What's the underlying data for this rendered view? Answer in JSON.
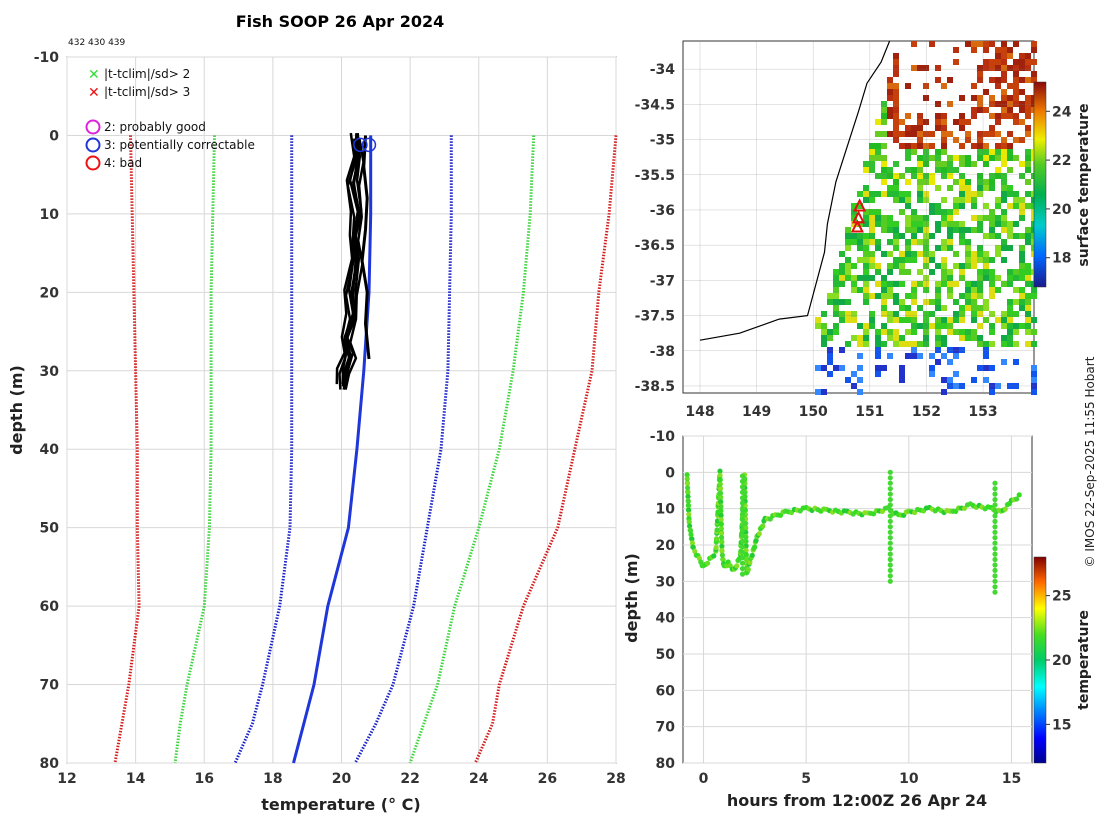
{
  "figure": {
    "title": "Fish SOOP 26 Apr 2024",
    "ids_text": "432 430 439",
    "copyright": "© IMOS 22-Sep-2025 11:55 Hobart"
  },
  "legend": {
    "cross_green": "|t-tclim|/sd> 2",
    "cross_red": "|t-tclim|/sd> 3",
    "flag2": "2: probably good",
    "flag3": "3: potentially correctable",
    "flag4": "4: bad",
    "colors": {
      "green": "#33dd33",
      "red": "#ee1111",
      "magenta": "#dd22dd",
      "blue": "#1f36d8"
    }
  },
  "chart_data": [
    {
      "type": "line",
      "name": "profile",
      "xlabel": "temperature (° C)",
      "ylabel": "depth (m)",
      "xlim": [
        12,
        28
      ],
      "ylim": [
        -10,
        80
      ],
      "xticks": [
        12,
        14,
        16,
        18,
        20,
        22,
        24,
        26,
        28
      ],
      "yticks": [
        -10,
        0,
        10,
        20,
        30,
        40,
        50,
        60,
        70,
        80
      ],
      "grid": true,
      "series": [
        {
          "name": "clim -3sd",
          "color": "#d41e1e",
          "style": "dotted",
          "points": [
            [
              13.85,
              0
            ],
            [
              13.9,
              10
            ],
            [
              13.95,
              20
            ],
            [
              14.0,
              30
            ],
            [
              14.05,
              40
            ],
            [
              14.05,
              50
            ],
            [
              14.1,
              60
            ],
            [
              13.8,
              70
            ],
            [
              13.6,
              75
            ],
            [
              13.4,
              80
            ]
          ]
        },
        {
          "name": "clim -2sd",
          "color": "#3ed43e",
          "style": "dotted",
          "points": [
            [
              16.3,
              0
            ],
            [
              16.25,
              10
            ],
            [
              16.2,
              20
            ],
            [
              16.2,
              30
            ],
            [
              16.2,
              40
            ],
            [
              16.15,
              50
            ],
            [
              16.0,
              60
            ],
            [
              15.5,
              70
            ],
            [
              15.3,
              75
            ],
            [
              15.15,
              80
            ]
          ]
        },
        {
          "name": "clim mean",
          "color": "#1a22c8",
          "style": "dotted",
          "points": [
            [
              18.55,
              0
            ],
            [
              18.55,
              10
            ],
            [
              18.55,
              20
            ],
            [
              18.55,
              30
            ],
            [
              18.55,
              40
            ],
            [
              18.5,
              50
            ],
            [
              18.2,
              60
            ],
            [
              17.7,
              70
            ],
            [
              17.4,
              75
            ],
            [
              16.9,
              80
            ]
          ]
        },
        {
          "name": "clim +mean2",
          "color": "#1a22c8",
          "style": "dotted",
          "points": [
            [
              23.2,
              0
            ],
            [
              23.2,
              10
            ],
            [
              23.15,
              20
            ],
            [
              23.1,
              30
            ],
            [
              22.9,
              40
            ],
            [
              22.5,
              50
            ],
            [
              22.1,
              60
            ],
            [
              21.5,
              70
            ],
            [
              21.0,
              75
            ],
            [
              20.4,
              80
            ]
          ]
        },
        {
          "name": "clim +2sd",
          "color": "#3ed43e",
          "style": "dotted",
          "points": [
            [
              25.6,
              0
            ],
            [
              25.5,
              10
            ],
            [
              25.3,
              20
            ],
            [
              25.0,
              30
            ],
            [
              24.6,
              40
            ],
            [
              24.0,
              50
            ],
            [
              23.3,
              60
            ],
            [
              22.8,
              70
            ],
            [
              22.4,
              75
            ],
            [
              22.0,
              80
            ]
          ]
        },
        {
          "name": "clim +3sd",
          "color": "#d41e1e",
          "style": "dotted",
          "points": [
            [
              28.0,
              0
            ],
            [
              27.8,
              10
            ],
            [
              27.5,
              20
            ],
            [
              27.3,
              30
            ],
            [
              26.8,
              40
            ],
            [
              26.3,
              50
            ],
            [
              25.3,
              60
            ],
            [
              24.6,
              70
            ],
            [
              24.4,
              75
            ],
            [
              23.9,
              80
            ]
          ]
        },
        {
          "name": "observed",
          "color": "#1f36d8",
          "style": "solid",
          "points": [
            [
              20.85,
              0
            ],
            [
              20.85,
              10
            ],
            [
              20.8,
              20
            ],
            [
              20.65,
              30
            ],
            [
              20.45,
              40
            ],
            [
              20.2,
              50
            ],
            [
              19.6,
              60
            ],
            [
              19.2,
              70
            ],
            [
              18.9,
              75
            ],
            [
              18.6,
              80
            ]
          ]
        },
        {
          "name": "casts",
          "color": "#000000",
          "style": "solid",
          "points": [
            [
              20.45,
              0
            ],
            [
              20.5,
              3
            ],
            [
              20.35,
              6
            ],
            [
              20.5,
              10
            ],
            [
              20.4,
              13
            ],
            [
              20.45,
              16
            ],
            [
              20.3,
              20
            ],
            [
              20.35,
              23
            ],
            [
              20.15,
              26
            ],
            [
              20.25,
              28
            ],
            [
              20.1,
              30
            ],
            [
              20.05,
              32
            ]
          ]
        },
        {
          "name": "casts-b",
          "color": "#000000",
          "style": "solid",
          "points": [
            [
              20.7,
              0
            ],
            [
              20.65,
              4
            ],
            [
              20.75,
              8
            ],
            [
              20.7,
              12
            ],
            [
              20.6,
              16
            ],
            [
              20.75,
              20
            ],
            [
              20.7,
              24
            ],
            [
              20.8,
              28.5
            ]
          ]
        }
      ],
      "flag_markers": [
        [
          20.55,
          1.2
        ],
        [
          20.8,
          1.2
        ]
      ]
    },
    {
      "type": "heatmap",
      "name": "map",
      "xlim": [
        147.7,
        153.9
      ],
      "ylim": [
        -38.6,
        -33.6
      ],
      "xticks": [
        148,
        149,
        150,
        151,
        152,
        153
      ],
      "yticks": [
        -34,
        -34.5,
        -35,
        -35.5,
        -36,
        -36.5,
        -37,
        -37.5,
        -38,
        -38.5
      ],
      "colorbar": {
        "label": "surface temperature",
        "ticks": [
          18,
          20,
          22,
          24
        ],
        "range": [
          16.8,
          25.2
        ]
      },
      "track": [
        [
          150.82,
          -35.95
        ],
        [
          150.8,
          -36.12
        ],
        [
          150.78,
          -36.25
        ]
      ],
      "coast": [
        [
          148.0,
          -37.85
        ],
        [
          148.7,
          -37.75
        ],
        [
          149.4,
          -37.55
        ],
        [
          149.9,
          -37.5
        ],
        [
          150.0,
          -37.2
        ],
        [
          150.2,
          -36.6
        ],
        [
          150.25,
          -36.2
        ],
        [
          150.4,
          -35.6
        ],
        [
          150.6,
          -35.1
        ],
        [
          150.8,
          -34.6
        ],
        [
          150.95,
          -34.2
        ],
        [
          151.2,
          -33.9
        ],
        [
          151.35,
          -33.6
        ]
      ]
    },
    {
      "type": "scatter",
      "name": "track-depth",
      "xlabel": "hours from 12:00Z 26 Apr 24",
      "ylabel": "depth (m)",
      "xlim": [
        -1,
        16
      ],
      "ylim": [
        -10,
        80
      ],
      "xticks": [
        0,
        5,
        10,
        15
      ],
      "yticks": [
        -10,
        0,
        10,
        20,
        30,
        40,
        50,
        60,
        70,
        80
      ],
      "colorbar": {
        "label": "temperature",
        "ticks": [
          15,
          20,
          25
        ],
        "range": [
          12,
          28
        ]
      },
      "series": [
        {
          "name": "depth-trace",
          "x": [
            -0.8,
            -0.7,
            -0.5,
            -0.2,
            0,
            0.3,
            0.6,
            0.8,
            0.9,
            1.0,
            1.2,
            1.5,
            1.8,
            2.0,
            2.1,
            2.3,
            2.6,
            3,
            3.5,
            4,
            5,
            6,
            7,
            8,
            9,
            9.5,
            10,
            11,
            12,
            13,
            14,
            14.5,
            15,
            15.5
          ],
          "y": [
            1,
            14,
            21,
            24,
            26,
            24,
            22,
            0,
            22,
            26,
            25,
            27,
            23,
            1,
            28,
            24,
            18,
            13,
            12,
            11,
            10,
            10.5,
            11,
            11.5,
            10,
            12,
            11,
            10,
            11,
            9,
            10,
            11,
            8,
            6
          ]
        }
      ]
    }
  ]
}
